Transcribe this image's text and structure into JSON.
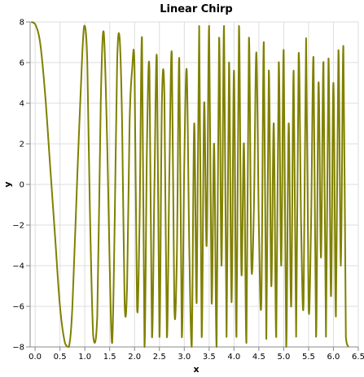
{
  "chart_data": {
    "type": "line",
    "title": "Linear Chirp",
    "xlabel": "x",
    "ylabel": "y",
    "xlim": [
      -0.1,
      6.5
    ],
    "ylim": [
      -8,
      8
    ],
    "x_ticks": [
      "0.0",
      "0.5",
      "1.0",
      "1.5",
      "2.0",
      "2.5",
      "3.0",
      "3.5",
      "4.0",
      "4.5",
      "5.0",
      "5.5",
      "6.0",
      "6.5"
    ],
    "y_ticks": [
      "−8",
      "−6",
      "−4",
      "−2",
      "0",
      "2",
      "4",
      "6",
      "8"
    ],
    "grid": true,
    "line_color": "#808000",
    "series": [
      {
        "x": [
          -0.08,
          0.0,
          0.1,
          0.2,
          0.3,
          0.4,
          0.5,
          0.6,
          0.68,
          0.75,
          0.85,
          0.95,
          1.0,
          1.05,
          1.1,
          1.17,
          1.25,
          1.32,
          1.38,
          1.45,
          1.5,
          1.55,
          1.6,
          1.65,
          1.7,
          1.75,
          1.8,
          1.85,
          1.9,
          1.95,
          2.0,
          2.05,
          2.1,
          2.15,
          2.2,
          2.25,
          2.3,
          2.35,
          2.4,
          2.45,
          2.5,
          2.55,
          2.6,
          2.65,
          2.7,
          2.75,
          2.8,
          2.85,
          2.9,
          2.95,
          3.0,
          3.05,
          3.1,
          3.15,
          3.2,
          3.25,
          3.3,
          3.35,
          3.4,
          3.45,
          3.5,
          3.55,
          3.6,
          3.65,
          3.7,
          3.75,
          3.8,
          3.85,
          3.9,
          3.95,
          4.0,
          4.05,
          4.1,
          4.15,
          4.2,
          4.25,
          4.3,
          4.35,
          4.4,
          4.45,
          4.5,
          4.55,
          4.6,
          4.65,
          4.7,
          4.75,
          4.8,
          4.85,
          4.9,
          4.95,
          5.0,
          5.05,
          5.1,
          5.15,
          5.2,
          5.25,
          5.3,
          5.35,
          5.4,
          5.45,
          5.5,
          5.55,
          5.6,
          5.65,
          5.7,
          5.75,
          5.8,
          5.85,
          5.9,
          5.95,
          6.0,
          6.05,
          6.1,
          6.15,
          6.2,
          6.25,
          6.3
        ],
        "y": [
          8.0,
          7.9,
          7.0,
          4.5,
          1.0,
          -2.5,
          -6.0,
          -7.8,
          -8.0,
          -6.0,
          0.5,
          6.5,
          7.8,
          6.0,
          -1.0,
          -7.5,
          -6.5,
          4.0,
          7.5,
          2.0,
          -4.0,
          -7.8,
          -2.0,
          6.0,
          7.2,
          3.0,
          -5.8,
          -5.0,
          3.0,
          5.6,
          5.7,
          -6.0,
          -2.0,
          7.2,
          -8.0,
          2.0,
          5.6,
          -7.5,
          0.0,
          6.2,
          -7.5,
          4.0,
          4.4,
          -7.5,
          0.5,
          6.4,
          -6.0,
          -3.7,
          6.2,
          -7.5,
          1.0,
          5.6,
          -3.0,
          -8.0,
          3.0,
          -5.8,
          7.8,
          -7.5,
          4.0,
          -3.0,
          7.8,
          -5.8,
          2.0,
          -8.0,
          7.2,
          -4.0,
          7.8,
          -7.5,
          6.0,
          -5.8,
          5.6,
          -7.5,
          7.8,
          -4.4,
          2.0,
          -7.8,
          7.2,
          -4.0,
          -1.2,
          6.5,
          -2.0,
          -5.8,
          7.0,
          -7.6,
          5.6,
          -5.0,
          3.0,
          -7.5,
          6.0,
          -4.0,
          6.6,
          -8.0,
          3.0,
          -6.0,
          5.6,
          -7.5,
          6.4,
          -2.0,
          -5.8,
          7.2,
          -6.0,
          -2.0,
          6.2,
          -7.5,
          5.0,
          -3.6,
          6.0,
          -7.5,
          6.2,
          -5.5,
          5.0,
          -6.5,
          6.6,
          -4.0,
          6.8,
          -7.5,
          -8.0
        ]
      }
    ]
  }
}
